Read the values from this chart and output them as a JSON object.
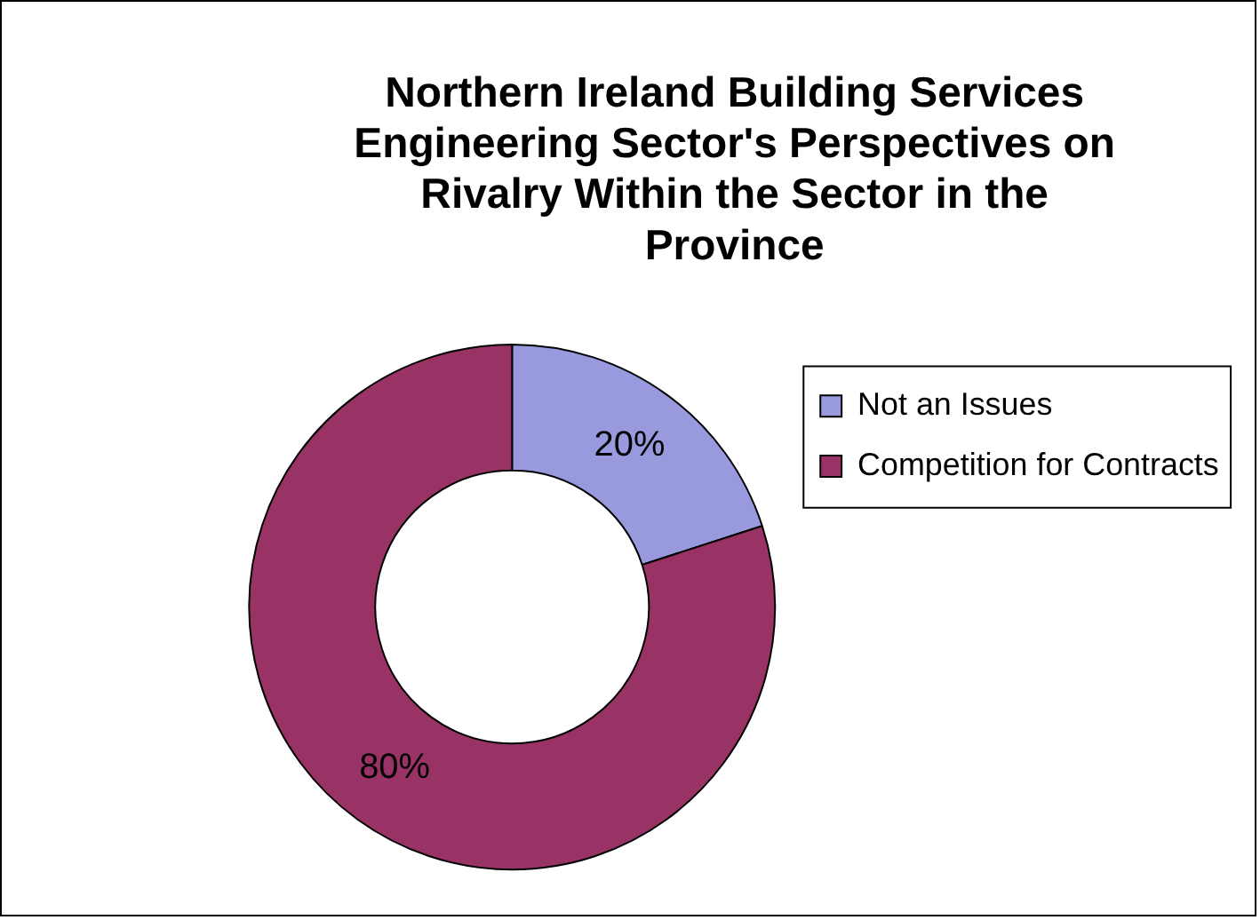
{
  "chart_data": {
    "type": "donut",
    "title": "Northern Ireland Building Services Engineering Sector's Perspectives on Rivalry Within the Sector in the Province",
    "categories": [
      "Not an Issues",
      "Competition for Contracts"
    ],
    "values": [
      20,
      80
    ],
    "colors": [
      "#9999dd",
      "#993366"
    ],
    "value_labels": [
      "20%",
      "80%"
    ],
    "legend": "right"
  }
}
